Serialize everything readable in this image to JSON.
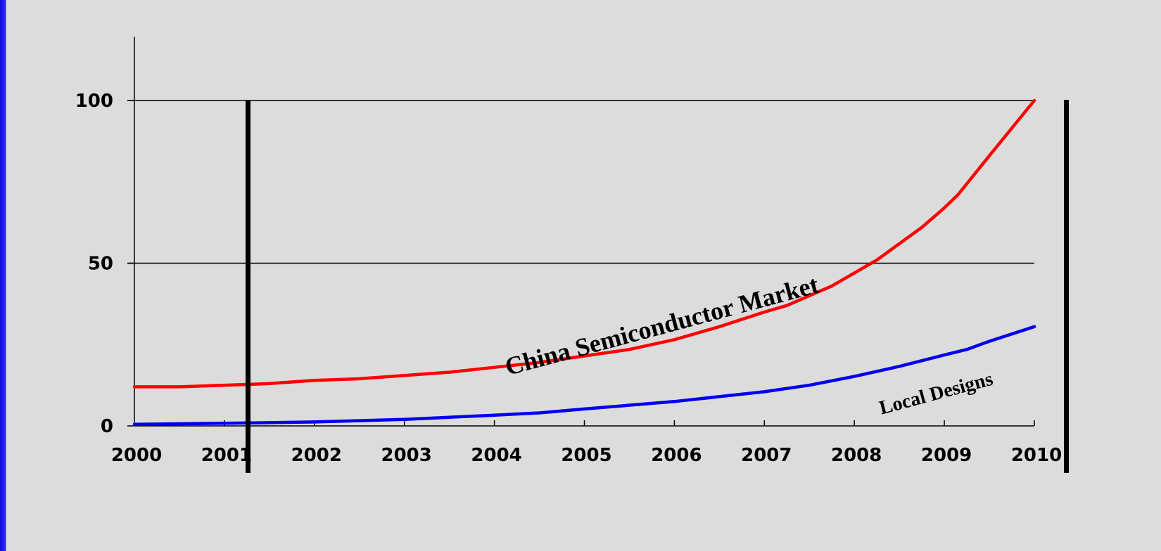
{
  "colors": {
    "background": "#dcdcdc",
    "frame": "#2020d8",
    "market_line": "#ff0000",
    "local_line": "#0000ee"
  },
  "chart_data": {
    "type": "line",
    "title": "",
    "xlabel": "",
    "ylabel": "",
    "xlim": [
      2000,
      2010
    ],
    "ylim": [
      0,
      120
    ],
    "yticks": [
      0,
      50,
      100
    ],
    "grid": "horizontal",
    "categories": [
      "2000",
      "2001",
      "2002",
      "2003",
      "2004",
      "2005",
      "2006",
      "2007",
      "2008",
      "2009",
      "2010"
    ],
    "series": [
      {
        "name": "China Semiconductor Market",
        "color": "#ff0000",
        "x": [
          2000,
          2000.5,
          2001,
          2001.5,
          2002,
          2002.5,
          2003,
          2003.5,
          2004,
          2004.5,
          2005,
          2005.5,
          2006,
          2006.5,
          2007,
          2007.25,
          2007.75,
          2008,
          2008.25,
          2008.75,
          2009,
          2009.15,
          2009.5,
          2010
        ],
        "y": [
          12,
          12,
          12.5,
          13,
          14,
          14.5,
          15.5,
          16.5,
          18,
          19.5,
          21.5,
          23.5,
          26.5,
          30.5,
          35,
          37,
          43,
          47,
          51,
          61,
          67,
          71,
          83,
          100
        ]
      },
      {
        "name": "Local Designs",
        "color": "#0000ee",
        "x": [
          2000,
          2001,
          2002,
          2003,
          2004,
          2004.5,
          2005,
          2006,
          2007,
          2007.5,
          2008,
          2008.5,
          2009,
          2009.25,
          2009.5,
          2010
        ],
        "y": [
          0.5,
          0.8,
          1.2,
          2,
          3.3,
          4,
          5.2,
          7.5,
          10.5,
          12.5,
          15.2,
          18.3,
          21.8,
          23.5,
          26,
          30.5
        ]
      }
    ],
    "annotations": [
      {
        "text": "China Semiconductor Market",
        "x": 2004.15,
        "y": 15.5,
        "angle": -15,
        "size": 36
      },
      {
        "text": "Local Designs",
        "x": 2008.3,
        "y": 3.5,
        "angle": -15,
        "size": 28
      }
    ]
  }
}
